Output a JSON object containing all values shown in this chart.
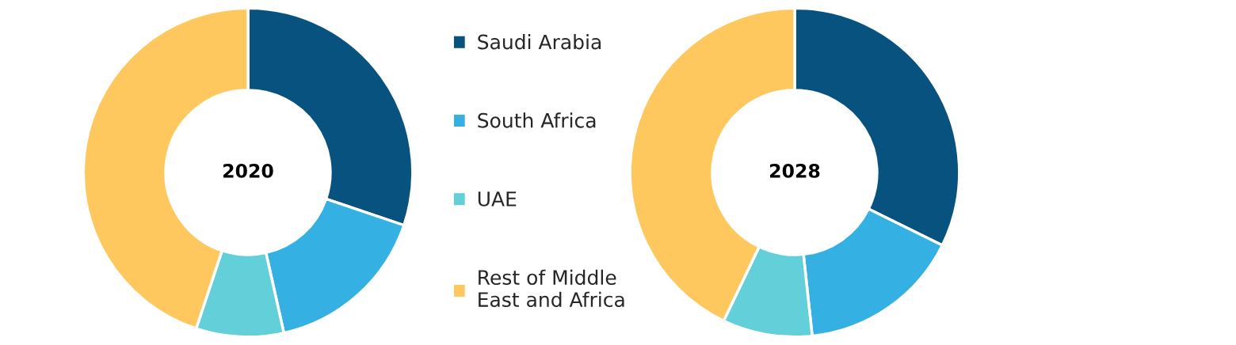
{
  "chart_data": [
    {
      "type": "donut",
      "title": "2020",
      "categories": [
        "Saudi Arabia",
        "South Africa",
        "UAE",
        "Rest of Middle\nEast and Africa"
      ],
      "values": [
        30.2,
        16.3,
        8.6,
        44.9
      ],
      "colors": [
        "#08527f",
        "#35b0e2",
        "#63cfd9",
        "#fec85f"
      ],
      "legend": "right"
    },
    {
      "type": "donut",
      "title": "2028",
      "categories": [
        null,
        null,
        null,
        null
      ],
      "values": [
        32.3,
        16.0,
        8.8,
        42.9
      ],
      "colors": [
        "#08527f",
        "#35b0e2",
        "#63cfd9",
        "#fec85f"
      ]
    }
  ]
}
